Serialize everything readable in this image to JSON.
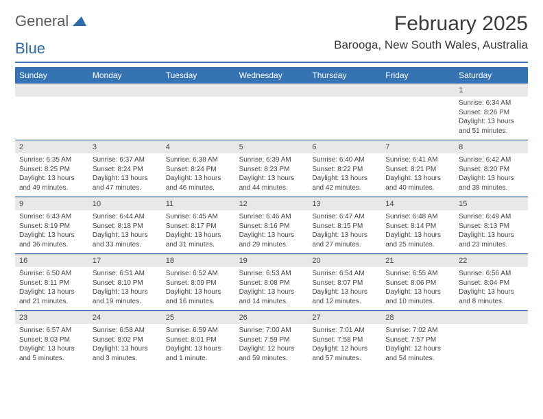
{
  "brand": {
    "word1": "General",
    "word2": "Blue",
    "logo_color": "#2e6bab"
  },
  "title": "February 2025",
  "location": "Barooga, New South Wales, Australia",
  "colors": {
    "header_bg": "#3673b3",
    "header_fg": "#ffffff",
    "date_bg": "#e8e8e8",
    "rule": "#3673b3"
  },
  "day_names": [
    "Sunday",
    "Monday",
    "Tuesday",
    "Wednesday",
    "Thursday",
    "Friday",
    "Saturday"
  ],
  "weeks": [
    [
      null,
      null,
      null,
      null,
      null,
      null,
      {
        "n": "1",
        "sr": "6:34 AM",
        "ss": "8:26 PM",
        "dl": "13 hours and 51 minutes."
      }
    ],
    [
      {
        "n": "2",
        "sr": "6:35 AM",
        "ss": "8:25 PM",
        "dl": "13 hours and 49 minutes."
      },
      {
        "n": "3",
        "sr": "6:37 AM",
        "ss": "8:24 PM",
        "dl": "13 hours and 47 minutes."
      },
      {
        "n": "4",
        "sr": "6:38 AM",
        "ss": "8:24 PM",
        "dl": "13 hours and 46 minutes."
      },
      {
        "n": "5",
        "sr": "6:39 AM",
        "ss": "8:23 PM",
        "dl": "13 hours and 44 minutes."
      },
      {
        "n": "6",
        "sr": "6:40 AM",
        "ss": "8:22 PM",
        "dl": "13 hours and 42 minutes."
      },
      {
        "n": "7",
        "sr": "6:41 AM",
        "ss": "8:21 PM",
        "dl": "13 hours and 40 minutes."
      },
      {
        "n": "8",
        "sr": "6:42 AM",
        "ss": "8:20 PM",
        "dl": "13 hours and 38 minutes."
      }
    ],
    [
      {
        "n": "9",
        "sr": "6:43 AM",
        "ss": "8:19 PM",
        "dl": "13 hours and 36 minutes."
      },
      {
        "n": "10",
        "sr": "6:44 AM",
        "ss": "8:18 PM",
        "dl": "13 hours and 33 minutes."
      },
      {
        "n": "11",
        "sr": "6:45 AM",
        "ss": "8:17 PM",
        "dl": "13 hours and 31 minutes."
      },
      {
        "n": "12",
        "sr": "6:46 AM",
        "ss": "8:16 PM",
        "dl": "13 hours and 29 minutes."
      },
      {
        "n": "13",
        "sr": "6:47 AM",
        "ss": "8:15 PM",
        "dl": "13 hours and 27 minutes."
      },
      {
        "n": "14",
        "sr": "6:48 AM",
        "ss": "8:14 PM",
        "dl": "13 hours and 25 minutes."
      },
      {
        "n": "15",
        "sr": "6:49 AM",
        "ss": "8:13 PM",
        "dl": "13 hours and 23 minutes."
      }
    ],
    [
      {
        "n": "16",
        "sr": "6:50 AM",
        "ss": "8:11 PM",
        "dl": "13 hours and 21 minutes."
      },
      {
        "n": "17",
        "sr": "6:51 AM",
        "ss": "8:10 PM",
        "dl": "13 hours and 19 minutes."
      },
      {
        "n": "18",
        "sr": "6:52 AM",
        "ss": "8:09 PM",
        "dl": "13 hours and 16 minutes."
      },
      {
        "n": "19",
        "sr": "6:53 AM",
        "ss": "8:08 PM",
        "dl": "13 hours and 14 minutes."
      },
      {
        "n": "20",
        "sr": "6:54 AM",
        "ss": "8:07 PM",
        "dl": "13 hours and 12 minutes."
      },
      {
        "n": "21",
        "sr": "6:55 AM",
        "ss": "8:06 PM",
        "dl": "13 hours and 10 minutes."
      },
      {
        "n": "22",
        "sr": "6:56 AM",
        "ss": "8:04 PM",
        "dl": "13 hours and 8 minutes."
      }
    ],
    [
      {
        "n": "23",
        "sr": "6:57 AM",
        "ss": "8:03 PM",
        "dl": "13 hours and 5 minutes."
      },
      {
        "n": "24",
        "sr": "6:58 AM",
        "ss": "8:02 PM",
        "dl": "13 hours and 3 minutes."
      },
      {
        "n": "25",
        "sr": "6:59 AM",
        "ss": "8:01 PM",
        "dl": "13 hours and 1 minute."
      },
      {
        "n": "26",
        "sr": "7:00 AM",
        "ss": "7:59 PM",
        "dl": "12 hours and 59 minutes."
      },
      {
        "n": "27",
        "sr": "7:01 AM",
        "ss": "7:58 PM",
        "dl": "12 hours and 57 minutes."
      },
      {
        "n": "28",
        "sr": "7:02 AM",
        "ss": "7:57 PM",
        "dl": "12 hours and 54 minutes."
      },
      null
    ]
  ],
  "labels": {
    "sunrise": "Sunrise:",
    "sunset": "Sunset:",
    "daylight": "Daylight:"
  }
}
